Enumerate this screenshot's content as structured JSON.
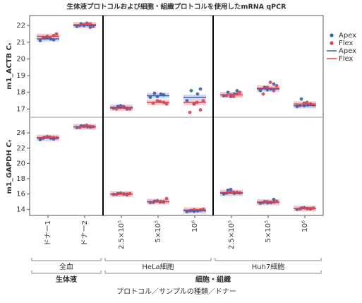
{
  "title": "生体液プロトコルおよび細胞・組織プロトコルを使用したmRNA qPCR",
  "x_axis": {
    "title": "プロトコル／サンプルの種類／ドナー",
    "supergroups": [
      {
        "name": "生体液",
        "groups": [
          {
            "name": "全血",
            "categories": [
              "ドナー1",
              "ドナー2"
            ]
          }
        ]
      },
      {
        "name": "細胞・組織",
        "groups": [
          {
            "name": "HeLa細胞",
            "categories": [
              "2.5×10⁵",
              "5×10⁵",
              "10⁶"
            ]
          },
          {
            "name": "Huh7細胞",
            "categories": [
              "2.5×10⁵",
              "5×10⁵",
              "10⁶"
            ]
          }
        ]
      }
    ]
  },
  "series": [
    {
      "name": "Apex",
      "color": "#3a5fb0",
      "band_color": "#c5d3ee"
    },
    {
      "name": "Flex",
      "color": "#d9434f",
      "band_color": "#f2c4c8"
    }
  ],
  "legend": {
    "position": "right",
    "markers": [
      "dot",
      "line"
    ]
  },
  "chart_data": [
    {
      "type": "strip",
      "y_label": "m1_ACTB Cₜ",
      "ylim": [
        16.55,
        22.6
      ],
      "yticks": [
        17,
        18,
        19,
        20,
        21,
        22
      ],
      "series": [
        {
          "means": [
            21.2,
            22.0,
            17.1,
            17.8,
            17.7,
            17.85,
            18.2,
            17.2
          ],
          "points": [
            [
              21.1,
              21.2,
              21.25,
              21.15,
              21.3
            ],
            [
              21.95,
              22.05,
              22.1,
              21.9,
              22.0
            ],
            [
              17.05,
              17.1,
              17.15,
              17.0,
              17.2
            ],
            [
              17.7,
              17.9,
              17.95,
              17.85,
              17.75
            ],
            [
              17.5,
              17.9,
              18.1,
              18.2,
              17.3
            ],
            [
              17.8,
              17.9,
              18.0,
              18.1,
              17.75
            ],
            [
              18.1,
              18.2,
              18.3,
              18.5,
              18.15
            ],
            [
              17.15,
              17.25,
              17.6,
              17.3,
              17.2
            ]
          ]
        },
        {
          "means": [
            21.35,
            22.05,
            17.05,
            17.4,
            17.4,
            17.85,
            18.25,
            17.3
          ],
          "points": [
            [
              21.3,
              21.4,
              21.35,
              21.5,
              21.25
            ],
            [
              22.0,
              22.1,
              22.05,
              21.95,
              22.15
            ],
            [
              17.0,
              17.05,
              17.1,
              17.0,
              17.15
            ],
            [
              17.35,
              17.4,
              17.5,
              17.3,
              17.45
            ],
            [
              16.8,
              16.95,
              17.3,
              17.5,
              17.4
            ],
            [
              17.8,
              17.9,
              17.85,
              18.0,
              17.75
            ],
            [
              17.9,
              18.1,
              18.3,
              18.4,
              18.6
            ],
            [
              17.2,
              17.3,
              17.35,
              17.25,
              17.4
            ]
          ]
        }
      ]
    },
    {
      "type": "strip",
      "y_label": "m1_GAPDH Cₜ",
      "ylim": [
        13.2,
        25.95
      ],
      "yticks": [
        14,
        16,
        18,
        20,
        22,
        24
      ],
      "series": [
        {
          "means": [
            23.3,
            24.8,
            16.0,
            15.0,
            13.8,
            16.1,
            14.9,
            14.1
          ],
          "points": [
            [
              23.1,
              23.3,
              23.4,
              23.2,
              23.5
            ],
            [
              24.7,
              24.8,
              24.9,
              24.75,
              24.85
            ],
            [
              15.95,
              16.0,
              16.05,
              15.9,
              16.1
            ],
            [
              14.9,
              15.0,
              15.05,
              14.95,
              15.1
            ],
            [
              13.7,
              13.8,
              13.85,
              13.9,
              13.75
            ],
            [
              16.0,
              16.1,
              16.5,
              16.2,
              16.6
            ],
            [
              14.8,
              14.9,
              15.0,
              15.3,
              14.85
            ],
            [
              14.0,
              14.1,
              14.15,
              14.05,
              14.2
            ]
          ]
        },
        {
          "means": [
            23.4,
            24.8,
            16.0,
            15.0,
            13.9,
            16.2,
            14.95,
            14.1
          ],
          "points": [
            [
              23.3,
              23.4,
              23.5,
              23.35,
              23.45
            ],
            [
              24.7,
              24.85,
              24.9,
              24.8,
              25.0
            ],
            [
              15.95,
              16.0,
              16.1,
              16.05,
              16.0
            ],
            [
              14.9,
              15.0,
              15.1,
              15.4,
              14.95
            ],
            [
              13.8,
              13.9,
              13.95,
              14.0,
              13.85
            ],
            [
              16.1,
              16.2,
              16.3,
              16.15,
              16.25
            ],
            [
              14.9,
              14.95,
              15.0,
              15.05,
              14.9
            ],
            [
              14.05,
              14.1,
              14.2,
              14.15,
              14.1
            ]
          ]
        }
      ]
    }
  ]
}
